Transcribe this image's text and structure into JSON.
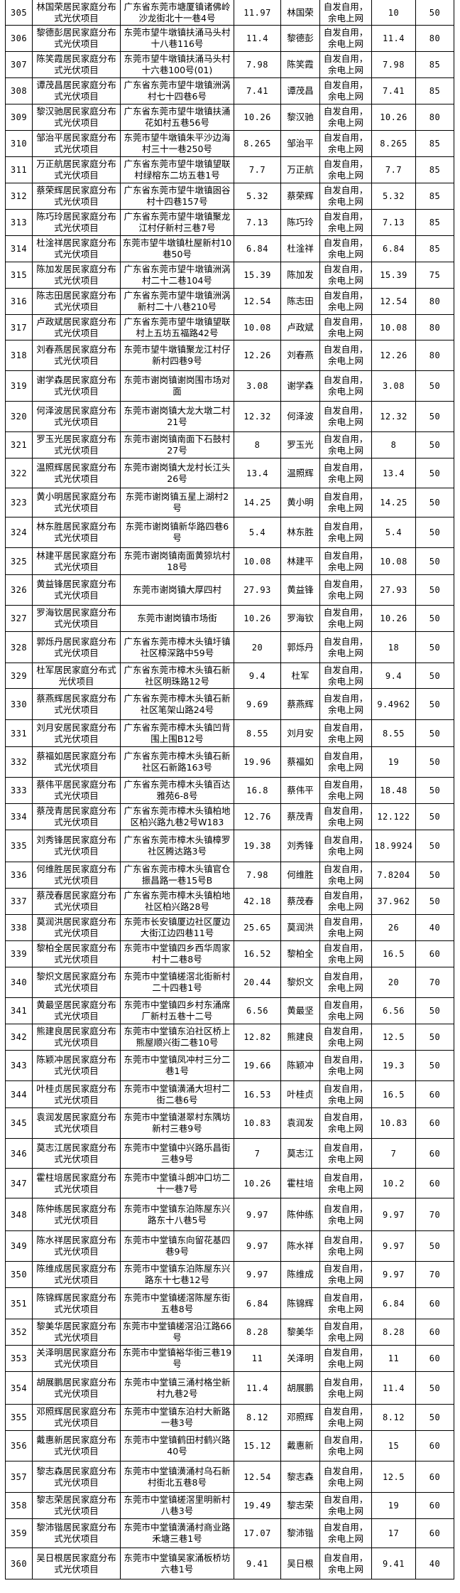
{
  "table": {
    "rows": [
      {
        "no": "305",
        "project": "林国荣居民家庭分布式光伏项目",
        "address": "广东省东莞市塘厦镇诸佛岭沙龙街北十一巷4号",
        "capacity": "11.97",
        "owner": "林国荣",
        "mode": "自发自用，余电上网",
        "capacity2": "10",
        "ratio": "50"
      },
      {
        "no": "306",
        "project": "黎德彭居民家庭分布式光伏项目",
        "address": "东莞市望牛墩镇扶涌马头村十八巷116号",
        "capacity": "11.4",
        "owner": "黎德彭",
        "mode": "自发自用，余电上网",
        "capacity2": "11.4",
        "ratio": "80"
      },
      {
        "no": "307",
        "project": "陈笑霞居民家庭分布式光伏项目",
        "address": "东莞市望牛墩镇扶涌马头村十六巷100号(01)",
        "capacity": "7.98",
        "owner": "陈笑霞",
        "mode": "自发自用，余电上网",
        "capacity2": "7.98",
        "ratio": "85"
      },
      {
        "no": "308",
        "project": "谭茂昌居民家庭分布式光伏项目",
        "address": "广东省东莞市望牛墩镇洲涡村七十四巷6号",
        "capacity": "7.41",
        "owner": "谭茂昌",
        "mode": "自发自用，余电上网",
        "capacity2": "7.41",
        "ratio": "85"
      },
      {
        "no": "309",
        "project": "黎汉驰居民家庭分布式光伏项目",
        "address": "广东省东莞市望牛墩镇扶涌花如村五巷56号",
        "capacity": "10.26",
        "owner": "黎汉驰",
        "mode": "自发自用，余电上网",
        "capacity2": "10.26",
        "ratio": "80"
      },
      {
        "no": "310",
        "project": "邹治平居民家庭分布式光伏项目",
        "address": "东莞市望牛墩镇朱平沙边海村三十一巷250号",
        "capacity": "8.265",
        "owner": "邹治平",
        "mode": "自发自用，余电上网",
        "capacity2": "8.265",
        "ratio": "85"
      },
      {
        "no": "311",
        "project": "万正航居民家庭分布式光伏项目",
        "address": "广东省东莞市望牛墩镇望联村绿榕东二坊五巷1号",
        "capacity": "7.7",
        "owner": "万正航",
        "mode": "自发自用，余电上网",
        "capacity2": "7.7",
        "ratio": "85"
      },
      {
        "no": "312",
        "project": "蔡荣辉居民家庭分布式光伏项目",
        "address": "广东省东莞市望牛墩镇囦谷村十四巷157号",
        "capacity": "5.32",
        "owner": "蔡荣辉",
        "mode": "自发自用，余电上网",
        "capacity2": "5.32",
        "ratio": "85"
      },
      {
        "no": "313",
        "project": "陈巧玲居民家庭分布式光伏项目",
        "address": "广东省东莞市望牛墩镇聚龙江村仔新村三巷7号",
        "capacity": "7.13",
        "owner": "陈巧玲",
        "mode": "自发自用，余电上网",
        "capacity2": "7.13",
        "ratio": "85"
      },
      {
        "no": "314",
        "project": "杜淦祥居民家庭分布式光伏项目",
        "address": "东莞市望牛墩镇杜屋新村10巷50号",
        "capacity": "6.84",
        "owner": "杜淦祥",
        "mode": "自发自用，余电上网",
        "capacity2": "6.84",
        "ratio": "85"
      },
      {
        "no": "315",
        "project": "陈加发居民家庭分布式光伏项目",
        "address": "广东省东莞市望牛墩镇洲涡村二十二巷104号",
        "capacity": "15.39",
        "owner": "陈加发",
        "mode": "自发自用，余电上网",
        "capacity2": "15.39",
        "ratio": "75"
      },
      {
        "no": "316",
        "project": "陈志田居民家庭分布式光伏项目",
        "address": "广东省东莞市望牛墩镇洲涡新村二十八巷210号",
        "capacity": "12.54",
        "owner": "陈志田",
        "mode": "自发自用，余电上网",
        "capacity2": "12.54",
        "ratio": "80"
      },
      {
        "no": "317",
        "project": "卢政斌居民家庭分布式光伏项目",
        "address": "广东省东莞市望牛墩镇望联村上五坊五福路42号",
        "capacity": "10.08",
        "owner": "卢政斌",
        "mode": "自发自用，余电上网",
        "capacity2": "10.08",
        "ratio": "80"
      },
      {
        "no": "318",
        "project": "刘春燕居民家庭分布式光伏项目",
        "address": "东莞市望牛墩镇聚龙江村仔新村四巷9号",
        "capacity": "12.26",
        "owner": "刘春燕",
        "mode": "自发自用，余电上网",
        "capacity2": "12.26",
        "ratio": "80"
      },
      {
        "no": "319",
        "project": "谢学森居民家庭分布式光伏项目",
        "address": "东莞市谢岗镇谢岗围市场对面",
        "capacity": "3.08",
        "owner": "谢学森",
        "mode": "自发自用，余电上网",
        "capacity2": "3.08",
        "ratio": "50"
      },
      {
        "no": "320",
        "project": "何泽波居民家庭分布式光伏项目",
        "address": "东莞市谢岗镇大龙大墩二村21号",
        "capacity": "12.32",
        "owner": "何泽波",
        "mode": "自发自用，余电上网",
        "capacity2": "12.32",
        "ratio": "50"
      },
      {
        "no": "321",
        "project": "罗玉光居民家庭分布式光伏项目",
        "address": "东莞市谢岗镇南面下石鼓村27号",
        "capacity": "8",
        "owner": "罗玉光",
        "mode": "自发自用，余电上网",
        "capacity2": "8",
        "ratio": "50"
      },
      {
        "no": "322",
        "project": "温照辉居民家庭分布式光伏项目",
        "address": "东莞市谢岗镇大龙村长江头26号",
        "capacity": "13.4",
        "owner": "温照辉",
        "mode": "自发自用，余电上网",
        "capacity2": "13.4",
        "ratio": "50"
      },
      {
        "no": "323",
        "project": "黄小明居民家庭分布式光伏项目",
        "address": "东莞市谢岗镇五星上湖村2号",
        "capacity": "14.25",
        "owner": "黄小明",
        "mode": "自发自用，余电上网",
        "capacity2": "14.25",
        "ratio": "50"
      },
      {
        "no": "324",
        "project": "林东胜居民家庭分布式光伏项目",
        "address": "东莞市谢岗镇新华路四巷6号",
        "capacity": "5.4",
        "owner": "林东胜",
        "mode": "自发自用，余电上网",
        "capacity2": "5.4",
        "ratio": "50"
      },
      {
        "no": "325",
        "project": "林建平居民家庭分布式光伏项目",
        "address": "东莞市谢岗镇南面黄猄坑村18号",
        "capacity": "10.08",
        "owner": "林建平",
        "mode": "自发自用，余电上网",
        "capacity2": "10.08",
        "ratio": "50"
      },
      {
        "no": "326",
        "project": "黄益锋居民家庭分布式光伏项目",
        "address": "东莞市谢岗镇大厚四村",
        "capacity": "27.93",
        "owner": "黄益锋",
        "mode": "自发自用，余电上网",
        "capacity2": "27.93",
        "ratio": "50"
      },
      {
        "no": "327",
        "project": "罗海钦居民家庭分布式光伏项目",
        "address": "东莞市谢岗镇市场街",
        "capacity": "10.26",
        "owner": "罗海钦",
        "mode": "自发自用，余电上网",
        "capacity2": "10.26",
        "ratio": "50"
      },
      {
        "no": "328",
        "project": "郭烁丹居民家庭分布式光伏项目",
        "address": "广东省东莞市樟木头镇圩镇社区樟深路中59号",
        "capacity": "20",
        "owner": "郭烁丹",
        "mode": "自发自用，余电上网",
        "capacity2": "18",
        "ratio": "50"
      },
      {
        "no": "329",
        "project": "杜军居民家庭分布式光伏项目",
        "address": "广东省东莞市樟木头镇石新社区明珠路12号",
        "capacity": "9.4",
        "owner": "杜军",
        "mode": "自发自用，余电上网",
        "capacity2": "9.4",
        "ratio": "50"
      },
      {
        "no": "330",
        "project": "蔡燕辉居民家庭分布式光伏项目",
        "address": "广东省东莞市樟木头镇石新社区笔架山路24号",
        "capacity": "9.69",
        "owner": "蔡燕辉",
        "mode": "自发自用，余电上网",
        "capacity2": "9.4962",
        "ratio": "50"
      },
      {
        "no": "331",
        "project": "刘月安居民家庭分布式光伏项目",
        "address": "广东省东莞市樟木头镇凹背围上围B12号",
        "capacity": "8.55",
        "owner": "刘月安",
        "mode": "自发自用，余电上网",
        "capacity2": "8.55",
        "ratio": "50"
      },
      {
        "no": "332",
        "project": "蔡福如居民家庭分布式光伏项目",
        "address": "广东省东莞市樟木头镇石新社区石新路163号",
        "capacity": "19.96",
        "owner": "蔡福如",
        "mode": "自发自用，余电上网",
        "capacity2": "19",
        "ratio": "50"
      },
      {
        "no": "333",
        "project": "蔡伟平居民家庭分布式光伏项目",
        "address": "广东省东莞市樟木头镇百达雅苑6-8号",
        "capacity": "16.8",
        "owner": "蔡伟平",
        "mode": "自发自用，余电上网",
        "capacity2": "18.48",
        "ratio": "50"
      },
      {
        "no": "334",
        "project": "蔡茂青居民家庭分布式光伏项目",
        "address": "广东省东莞市樟木头镇柏地区柏兴路九巷2号W183",
        "capacity": "12.76",
        "owner": "蔡茂青",
        "mode": "自发自用，余电上网",
        "capacity2": "12.122",
        "ratio": "50"
      },
      {
        "no": "335",
        "project": "刘秀锋居民家庭分布式光伏项目",
        "address": "广东省东莞市樟木头镇樟罗社区腾达路3号",
        "capacity": "19.38",
        "owner": "刘秀锋",
        "mode": "自发自用，余电上网",
        "capacity2": "18.9924",
        "ratio": "50"
      },
      {
        "no": "336",
        "project": "何维胜居民家庭分布式光伏项目",
        "address": "广东省东莞市樟木头镇官仓振昌路一巷15号B",
        "capacity": "7.98",
        "owner": "何维胜",
        "mode": "自发自用，余电上网",
        "capacity2": "7.8204",
        "ratio": "50"
      },
      {
        "no": "337",
        "project": "蔡茂春居民家庭分布式光伏项目",
        "address": "广东省东莞市樟木头镇柏地社区柏兴路28号",
        "capacity": "42.18",
        "owner": "蔡茂春",
        "mode": "自发自用，余电上网",
        "capacity2": "37.962",
        "ratio": "50"
      },
      {
        "no": "338",
        "project": "莫润洪居民家庭分布式光伏项目",
        "address": "东莞市长安镇厦边社区厦边大街江边四巷11号",
        "capacity": "25.65",
        "owner": "莫润洪",
        "mode": "自发自用，余电上网",
        "capacity2": "26",
        "ratio": "40"
      },
      {
        "no": "339",
        "project": "黎柏全居民家庭分布式光伏项目",
        "address": "东莞市中堂镇四乡西华周家村十二巷8号",
        "capacity": "16.52",
        "owner": "黎柏全",
        "mode": "自发自用，余电上网",
        "capacity2": "16.5",
        "ratio": "60"
      },
      {
        "no": "340",
        "project": "黎炽文居民家庭分布式光伏项目",
        "address": "东莞市中堂镇槎滘北街新村二十四巷1号",
        "capacity": "20.44",
        "owner": "黎炽文",
        "mode": "自发自用，余电上网",
        "capacity2": "20",
        "ratio": "70"
      },
      {
        "no": "341",
        "project": "黄最坚居民家庭分布式光伏项目",
        "address": "东莞市中堂镇四乡村东涌席厂新村五巷十二号",
        "capacity": "6.56",
        "owner": "黄最坚",
        "mode": "自发自用，余电上网",
        "capacity2": "6.56",
        "ratio": "50"
      },
      {
        "no": "342",
        "project": "熊建良居民家庭分布式光伏项目",
        "address": "东莞市中堂镇东泊社区桥上熊屋顺兴街二巷10号",
        "capacity": "12.82",
        "owner": "熊建良",
        "mode": "自发自用，余电上网",
        "capacity2": "12.5",
        "ratio": "50"
      },
      {
        "no": "343",
        "project": "陈颖冲居民家庭分布式光伏项目",
        "address": "东莞市中堂镇凤冲村三分二巷1号",
        "capacity": "19.66",
        "owner": "陈颖冲",
        "mode": "自发自用，余电上网",
        "capacity2": "19.3",
        "ratio": "50"
      },
      {
        "no": "344",
        "project": "叶桂贞居民家庭分布式光伏项目",
        "address": "东莞市中堂镇潢涌大坦村二街二巷6号",
        "capacity": "16.53",
        "owner": "叶桂贞",
        "mode": "自发自用，余电上网",
        "capacity2": "16.5",
        "ratio": "60"
      },
      {
        "no": "345",
        "project": "袁润发居民家庭分布式光伏项目",
        "address": "东莞市中堂镇湛翠村东隅坊新村三巷9号",
        "capacity": "10.83",
        "owner": "袁润发",
        "mode": "自发自用，余电上网",
        "capacity2": "10.83",
        "ratio": "60"
      },
      {
        "no": "346",
        "project": "莫志江居民家庭分布式光伏项目",
        "address": "东莞市中堂镇中兴路乐昌街三巷9号",
        "capacity": "7",
        "owner": "莫志江",
        "mode": "自发自用，余电上网",
        "capacity2": "7",
        "ratio": "60"
      },
      {
        "no": "347",
        "project": "霍柱培居民家庭分布式光伏项目",
        "address": "东莞市中堂镇斗朗冲口坊二十一巷7号",
        "capacity": "10.26",
        "owner": "霍柱培",
        "mode": "自发自用，余电上网",
        "capacity2": "10.2",
        "ratio": "60"
      },
      {
        "no": "348",
        "project": "陈仲练居民家庭分布式光伏项目",
        "address": "东莞市中堂镇东泊陈屋东兴路东十八巷5号",
        "capacity": "9.97",
        "owner": "陈仲练",
        "mode": "自发自用，余电上网",
        "capacity2": "9.97",
        "ratio": "70"
      },
      {
        "no": "349",
        "project": "陈水祥居民家庭分布式光伏项目",
        "address": "东莞市中堂镇东向留花基四巷9号",
        "capacity": "9.97",
        "owner": "陈水祥",
        "mode": "自发自用，余电上网",
        "capacity2": "9.97",
        "ratio": "50"
      },
      {
        "no": "350",
        "project": "陈维成居民家庭分布式光伏项目",
        "address": "东莞市中堂镇东泊陈屋东兴路东十七巷12号",
        "capacity": "9.97",
        "owner": "陈维成",
        "mode": "自发自用，余电上网",
        "capacity2": "9.97",
        "ratio": "70"
      },
      {
        "no": "351",
        "project": "陈锦辉居民家庭分布式光伏项目",
        "address": "东莞市中堂镇槎滘陈屋东街五巷8号",
        "capacity": "6.84",
        "owner": "陈锦辉",
        "mode": "自发自用，余电上网",
        "capacity2": "6.84",
        "ratio": "60"
      },
      {
        "no": "352",
        "project": "黎美华居民家庭分布式光伏项目",
        "address": "东莞市中堂镇槎滘沿江路66号",
        "capacity": "8.28",
        "owner": "黎美华",
        "mode": "自发自用，余电上网",
        "capacity2": "8.28",
        "ratio": "60"
      },
      {
        "no": "353",
        "project": "关泽明居民家庭分布式光伏项目",
        "address": "东莞市中堂镇裕华街三巷19号",
        "capacity": "11",
        "owner": "关泽明",
        "mode": "自发自用，余电上网",
        "capacity2": "11",
        "ratio": "60"
      },
      {
        "no": "354",
        "project": "胡展鹏居民家庭分布式光伏项目",
        "address": "东莞市中堂镇三涌村格坣新村九巷2号",
        "capacity": "11.4",
        "owner": "胡展鹏",
        "mode": "自发自用，余电上网",
        "capacity2": "11.4",
        "ratio": "50"
      },
      {
        "no": "355",
        "project": "邓照辉居民家庭分布式光伏项目",
        "address": "东莞市中堂镇东泊村大新路一巷3号",
        "capacity": "8.12",
        "owner": "邓照辉",
        "mode": "自发自用，余电上网",
        "capacity2": "8.12",
        "ratio": "50"
      },
      {
        "no": "356",
        "project": "戴惠新居民家庭分布式光伏项目",
        "address": "东莞市中堂镇鹤田村鹤兴路40号",
        "capacity": "15.12",
        "owner": "戴惠新",
        "mode": "自发自用，余电上网",
        "capacity2": "15",
        "ratio": "60"
      },
      {
        "no": "357",
        "project": "黎志森居民家庭分布式光伏项目",
        "address": "东莞市中堂镇潢涌村乌石新村街北五巷8号",
        "capacity": "12.54",
        "owner": "黎志森",
        "mode": "自发自用，余电上网",
        "capacity2": "12.5",
        "ratio": "60"
      },
      {
        "no": "358",
        "project": "黎志荣居民家庭分布式光伏项目",
        "address": "东莞市中堂镇槎滘里明新村八巷3号",
        "capacity": "19.49",
        "owner": "黎志荣",
        "mode": "自发自用，余电上网",
        "capacity2": "19",
        "ratio": "60"
      },
      {
        "no": "359",
        "project": "黎沛锴居民家庭分布式光伏项目",
        "address": "东莞市中堂镇潢涌村商业路禾塘三巷1号",
        "capacity": "17.07",
        "owner": "黎沛锴",
        "mode": "自发自用，余电上网",
        "capacity2": "17",
        "ratio": "60"
      },
      {
        "no": "360",
        "project": "吴日根居民家庭分布式光伏项目",
        "address": "东莞市中堂镇吴家涌板桥坊六巷1号",
        "capacity": "9.41",
        "owner": "吴日根",
        "mode": "自发自用，余电上网",
        "capacity2": "9.41",
        "ratio": "40"
      }
    ]
  }
}
